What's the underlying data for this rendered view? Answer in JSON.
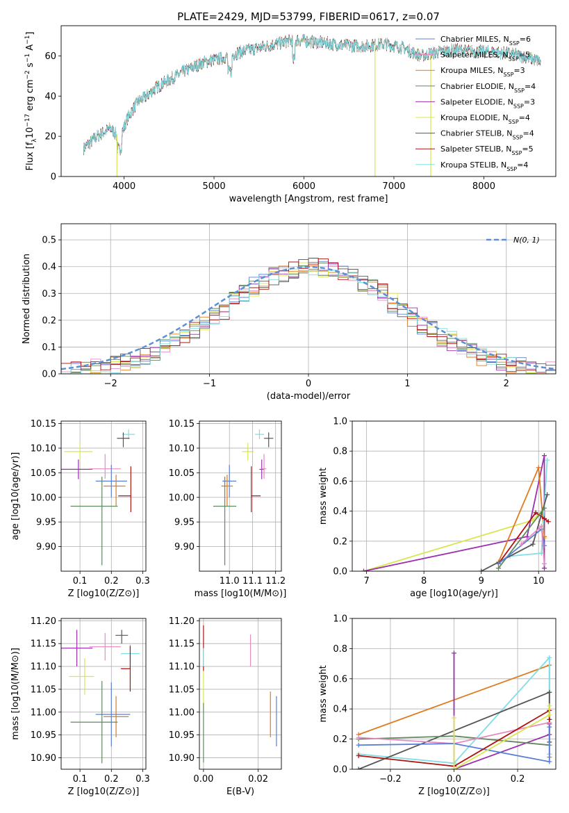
{
  "title": "PLATE=2429, MJD=53799, FIBERID=0617, z=0.07",
  "colors": {
    "Chabrier MILES": "#5b7fd6",
    "Salpeter MILES": "#e68ac4",
    "Kroupa MILES": "#e07a1f",
    "Chabrier ELODIE": "#5e8a5e",
    "Salpeter ELODIE": "#9b2fae",
    "Kroupa ELODIE": "#d9e64e",
    "Chabrier STELIB": "#555555",
    "Salpeter STELIB": "#b0100f",
    "Kroupa STELIB": "#7fdde3",
    "normal": "#5b8fd6"
  },
  "chart_data": [
    {
      "id": "spectrum",
      "type": "line",
      "xlabel": "wavelength [Angstrom, rest frame]",
      "ylabel": "Flux [f_λ 10^-17 erg cm^-2 s^-1 A^-1]",
      "ylabel_parts": {
        "a": "Flux [f",
        "b": "λ",
        "c": "10",
        "d": "−17",
        "e": " erg cm",
        "f": "−2",
        "g": " s",
        "h": "−1",
        "i": " A",
        "j": "−1",
        "k": "]"
      },
      "xlim": [
        3300,
        8800
      ],
      "ylim": [
        0,
        75
      ],
      "xticks": [
        4000,
        5000,
        6000,
        7000,
        8000
      ],
      "yticks": [
        0,
        20,
        40,
        60
      ],
      "grid": false,
      "legend": "upper right",
      "continuum": {
        "x": [
          3550,
          3700,
          3850,
          3950,
          4050,
          4150,
          4250,
          4350,
          4500,
          4700,
          4900,
          5100,
          5300,
          5500,
          5700,
          5900,
          6100,
          6300,
          6500,
          6700,
          6900,
          7100,
          7300,
          7500,
          7700,
          7900,
          8100,
          8300,
          8500,
          8630
        ],
        "y": [
          14,
          20,
          24,
          19,
          30,
          37,
          40,
          44,
          48,
          53,
          57,
          59,
          62,
          64,
          66,
          68,
          67,
          66,
          65,
          65,
          66,
          64,
          60,
          62,
          63,
          62,
          62,
          61,
          59,
          57
        ]
      },
      "spikes": [
        {
          "x": 3920,
          "y": 0
        },
        {
          "x": 6790,
          "y": 0
        },
        {
          "x": 7410,
          "y": 0
        }
      ],
      "legend_entries": [
        {
          "name": "Chabrier MILES",
          "n": "6"
        },
        {
          "name": "Salpeter MILES",
          "n": "5"
        },
        {
          "name": "Kroupa MILES",
          "n": "3"
        },
        {
          "name": "Chabrier ELODIE",
          "n": "4"
        },
        {
          "name": "Salpeter ELODIE",
          "n": "3"
        },
        {
          "name": "Kroupa ELODIE",
          "n": "4"
        },
        {
          "name": "Chabrier STELIB",
          "n": "4"
        },
        {
          "name": "Salpeter STELIB",
          "n": "5"
        },
        {
          "name": "Kroupa STELIB",
          "n": "4"
        }
      ],
      "legend_sub": "SSP"
    },
    {
      "id": "residuals",
      "type": "bar",
      "xlabel": "(data-model)/error",
      "ylabel": "Normed distribution",
      "xlim": [
        -2.5,
        2.5
      ],
      "ylim": [
        0,
        0.56
      ],
      "xticks": [
        -2,
        -1,
        0,
        1,
        2
      ],
      "yticks": [
        0.0,
        0.1,
        0.2,
        0.3,
        0.4,
        0.5
      ],
      "grid": true,
      "legend": "upper right",
      "normal_label": "N(0, 1)",
      "bin_width": 0.1
    },
    {
      "id": "age_vs_Z",
      "type": "scatter",
      "xlabel": "Z [log10(Z/Z⊙)]",
      "ylabel": "age [log10(age/yr)]",
      "xlim": [
        0.04,
        0.31
      ],
      "ylim": [
        9.85,
        10.155
      ],
      "xticks": [
        0.1,
        0.2,
        0.3
      ],
      "yticks": [
        9.9,
        9.95,
        10.0,
        10.05,
        10.1,
        10.15
      ],
      "grid": true,
      "points": [
        {
          "model": "Kroupa STELIB",
          "x": 0.255,
          "y": 10.128,
          "ex": [
            0.02,
            0.02
          ],
          "ey": [
            0.01,
            0.01
          ]
        },
        {
          "model": "Chabrier STELIB",
          "x": 0.238,
          "y": 10.12,
          "ex": [
            0.02,
            0.02
          ],
          "ey": [
            0.018,
            0.012
          ]
        },
        {
          "model": "Kroupa ELODIE",
          "x": 0.1,
          "y": 10.093,
          "ex": [
            0.05,
            0.04
          ],
          "ey": [
            0.018,
            0.018
          ]
        },
        {
          "model": "Salpeter ELODIE",
          "x": 0.095,
          "y": 10.057,
          "ex": [
            0.06,
            0.045
          ],
          "ey": [
            0.02,
            0.02
          ]
        },
        {
          "model": "Salpeter MILES",
          "x": 0.18,
          "y": 10.058,
          "ex": [
            0.05,
            0.05
          ],
          "ey": [
            0.02,
            0.03
          ]
        },
        {
          "model": "Salpeter STELIB",
          "x": 0.262,
          "y": 10.003,
          "ex": [
            0.04,
            0.0
          ],
          "ey": [
            0.033,
            0.06
          ]
        },
        {
          "model": "Chabrier MILES",
          "x": 0.2,
          "y": 10.033,
          "ex": [
            0.05,
            0.05
          ],
          "ey": [
            0.033,
            0.033
          ]
        },
        {
          "model": "Kroupa MILES",
          "x": 0.215,
          "y": 10.023,
          "ex": [
            0.04,
            0.03
          ],
          "ey": [
            0.04,
            0.023
          ]
        },
        {
          "model": "Chabrier ELODIE",
          "x": 0.17,
          "y": 9.982,
          "ex": [
            0.1,
            0.05
          ],
          "ey": [
            0.12,
            0.06
          ]
        }
      ]
    },
    {
      "id": "age_vs_mass",
      "type": "scatter",
      "xlabel": "mass [log10(M/M⊙)]",
      "ylabel": "",
      "xlim": [
        10.87,
        11.225
      ],
      "ylim": [
        9.85,
        10.155
      ],
      "xticks": [
        11.0,
        11.1,
        11.2
      ],
      "yticks": [
        9.9,
        9.95,
        10.0,
        10.05,
        10.1,
        10.15
      ],
      "grid": true,
      "points": [
        {
          "model": "Kroupa STELIB",
          "x": 11.13,
          "y": 10.128,
          "ex": [
            0.02,
            0.02
          ],
          "ey": [
            0.01,
            0.01
          ]
        },
        {
          "model": "Chabrier STELIB",
          "x": 11.17,
          "y": 10.12,
          "ex": [
            0.02,
            0.02
          ],
          "ey": [
            0.018,
            0.012
          ]
        },
        {
          "model": "Kroupa ELODIE",
          "x": 11.08,
          "y": 10.093,
          "ex": [
            0.025,
            0.025
          ],
          "ey": [
            0.018,
            0.018
          ]
        },
        {
          "model": "Salpeter ELODIE",
          "x": 11.14,
          "y": 10.057,
          "ex": [
            0.01,
            0.01
          ],
          "ey": [
            0.02,
            0.02
          ]
        },
        {
          "model": "Salpeter MILES",
          "x": 11.15,
          "y": 10.058,
          "ex": [
            0.01,
            0.01
          ],
          "ey": [
            0.02,
            0.03
          ]
        },
        {
          "model": "Salpeter STELIB",
          "x": 11.095,
          "y": 10.003,
          "ex": [
            0.0,
            0.04
          ],
          "ey": [
            0.033,
            0.06
          ]
        },
        {
          "model": "Chabrier MILES",
          "x": 11.0,
          "y": 10.033,
          "ex": [
            0.03,
            0.03
          ],
          "ey": [
            0.033,
            0.033
          ]
        },
        {
          "model": "Kroupa MILES",
          "x": 10.99,
          "y": 10.023,
          "ex": [
            0.025,
            0.025
          ],
          "ey": [
            0.04,
            0.023
          ]
        },
        {
          "model": "Chabrier ELODIE",
          "x": 10.98,
          "y": 9.982,
          "ex": [
            0.05,
            0.05
          ],
          "ey": [
            0.12,
            0.06
          ]
        }
      ]
    },
    {
      "id": "weight_vs_age",
      "type": "line",
      "xlabel": "age [log10(age/yr)]",
      "ylabel": "mass weight",
      "xlim": [
        6.75,
        10.3
      ],
      "ylim": [
        0.0,
        1.0
      ],
      "xticks": [
        7,
        8,
        9,
        10
      ],
      "yticks": [
        0.0,
        0.2,
        0.4,
        0.6,
        0.8,
        1.0
      ],
      "grid": true,
      "series": [
        {
          "model": "Kroupa ELODIE",
          "x": [
            6.95,
            9.9,
            10.1,
            10.1
          ],
          "y": [
            0.0,
            0.34,
            0.42,
            0.22
          ]
        },
        {
          "model": "Salpeter ELODIE",
          "x": [
            6.95,
            9.8,
            10.1,
            10.1
          ],
          "y": [
            0.0,
            0.23,
            0.77,
            0.02
          ]
        },
        {
          "model": "Kroupa MILES",
          "x": [
            9.3,
            10.0,
            10.1
          ],
          "y": [
            0.06,
            0.69,
            0.23
          ]
        },
        {
          "model": "Kroupa STELIB",
          "x": [
            9.5,
            10.05,
            10.15
          ],
          "y": [
            0.1,
            0.12,
            0.74
          ]
        },
        {
          "model": "Salpeter STELIB",
          "x": [
            9.3,
            9.95,
            10.1,
            10.17
          ],
          "y": [
            0.05,
            0.39,
            0.35,
            0.33
          ]
        },
        {
          "model": "Chabrier STELIB",
          "x": [
            9.0,
            9.9,
            10.15
          ],
          "y": [
            0.0,
            0.18,
            0.51
          ]
        },
        {
          "model": "Chabrier ELODIE",
          "x": [
            9.3,
            10.1
          ],
          "y": [
            0.02,
            0.42
          ]
        },
        {
          "model": "Chabrier MILES",
          "x": [
            9.3,
            10.05,
            10.1
          ],
          "y": [
            0.05,
            0.28,
            0.17
          ]
        },
        {
          "model": "Salpeter MILES",
          "x": [
            9.7,
            10.05,
            10.1
          ],
          "y": [
            0.18,
            0.3,
            0.05
          ]
        }
      ]
    },
    {
      "id": "mass_vs_Z",
      "type": "scatter",
      "xlabel": "Z [log10(Z/Z⊙)]",
      "ylabel": "mass [log10(M/M⊙)]",
      "xlim": [
        0.04,
        0.31
      ],
      "ylim": [
        10.875,
        11.205
      ],
      "xticks": [
        0.1,
        0.2,
        0.3
      ],
      "yticks": [
        10.9,
        10.95,
        11.0,
        11.05,
        11.1,
        11.15,
        11.2
      ],
      "grid": true,
      "points": [
        {
          "model": "Chabrier STELIB",
          "x": 0.233,
          "y": 11.168,
          "ex": [
            0.02,
            0.02
          ],
          "ey": [
            0.018,
            0.012
          ]
        },
        {
          "model": "Kroupa STELIB",
          "x": 0.26,
          "y": 11.128,
          "ex": [
            0.03,
            0.03
          ],
          "ey": [
            0.02,
            0.02
          ]
        },
        {
          "model": "Salpeter ELODIE",
          "x": 0.09,
          "y": 11.14,
          "ex": [
            0.05,
            0.05
          ],
          "ey": [
            0.04,
            0.04
          ]
        },
        {
          "model": "Salpeter MILES",
          "x": 0.18,
          "y": 11.143,
          "ex": [
            0.05,
            0.05
          ],
          "ey": [
            0.03,
            0.03
          ]
        },
        {
          "model": "Salpeter STELIB",
          "x": 0.26,
          "y": 11.095,
          "ex": [
            0.03,
            0.0
          ],
          "ey": [
            0.05,
            0.05
          ]
        },
        {
          "model": "Kroupa ELODIE",
          "x": 0.115,
          "y": 11.078,
          "ex": [
            0.05,
            0.03
          ],
          "ey": [
            0.04,
            0.04
          ]
        },
        {
          "model": "Chabrier MILES",
          "x": 0.2,
          "y": 10.995,
          "ex": [
            0.05,
            0.06
          ],
          "ey": [
            0.07,
            0.07
          ]
        },
        {
          "model": "Kroupa MILES",
          "x": 0.215,
          "y": 10.99,
          "ex": [
            0.04,
            0.04
          ],
          "ey": [
            0.045,
            0.045
          ]
        },
        {
          "model": "Chabrier ELODIE",
          "x": 0.17,
          "y": 10.978,
          "ex": [
            0.1,
            0.05
          ],
          "ey": [
            0.09,
            0.09
          ]
        }
      ]
    },
    {
      "id": "mass_vs_EBV",
      "type": "scatter",
      "xlabel": "E(B-V)",
      "ylabel": "",
      "xlim": [
        -0.0015,
        0.0285
      ],
      "ylim": [
        10.875,
        11.205
      ],
      "xticks": [
        0.0,
        0.02
      ],
      "yticks": [
        10.9,
        10.95,
        11.0,
        11.05,
        11.1,
        11.15,
        11.2
      ],
      "grid": true,
      "points": [
        {
          "model": "Salpeter STELIB",
          "x": 0.0,
          "y": 11.15,
          "ey": [
            0.06,
            0.04
          ]
        },
        {
          "model": "Kroupa ELODIE",
          "x": 0.0,
          "y": 11.05,
          "ey": [
            0.04,
            0.04
          ]
        },
        {
          "model": "Chabrier ELODIE",
          "x": 0.0,
          "y": 10.96,
          "ey": [
            0.07,
            0.06
          ]
        },
        {
          "model": "Kroupa STELIB",
          "x": 0.0,
          "y": 11.12,
          "ey": [
            0.02,
            0.02
          ]
        },
        {
          "model": "Salpeter MILES",
          "x": 0.0172,
          "y": 11.13,
          "ey": [
            0.03,
            0.04
          ]
        },
        {
          "model": "Kroupa MILES",
          "x": 0.0245,
          "y": 10.995,
          "ey": [
            0.05,
            0.05
          ]
        },
        {
          "model": "Chabrier MILES",
          "x": 0.0267,
          "y": 10.98,
          "ey": [
            0.055,
            0.055
          ]
        }
      ]
    },
    {
      "id": "weight_vs_Z",
      "type": "line",
      "xlabel": "Z [log10(Z/Z⊙)]",
      "ylabel": "mass weight",
      "xlim": [
        -0.32,
        0.32
      ],
      "ylim": [
        0.0,
        1.0
      ],
      "xticks": [
        -0.2,
        0.0,
        0.2
      ],
      "yticks": [
        0.0,
        0.2,
        0.4,
        0.6,
        0.8,
        1.0
      ],
      "grid": true,
      "series": [
        {
          "model": "Kroupa MILES",
          "x": [
            -0.3,
            0.3,
            0.3
          ],
          "y": [
            0.23,
            0.69,
            0.08
          ]
        },
        {
          "model": "Kroupa STELIB",
          "x": [
            -0.3,
            0.0,
            0.3,
            0.3
          ],
          "y": [
            0.1,
            0.04,
            0.74,
            0.1
          ]
        },
        {
          "model": "Chabrier STELIB",
          "x": [
            -0.3,
            0.3,
            0.3
          ],
          "y": [
            0.0,
            0.51,
            0.18
          ]
        },
        {
          "model": "Salpeter ELODIE",
          "x": [
            0.0,
            0.0,
            0.3,
            0.3
          ],
          "y": [
            0.77,
            0.0,
            0.23,
            0.3
          ]
        },
        {
          "model": "Chabrier ELODIE",
          "x": [
            -0.3,
            0.0,
            0.3
          ],
          "y": [
            0.2,
            0.22,
            0.16
          ]
        },
        {
          "model": "Salpeter MILES",
          "x": [
            -0.3,
            0.0,
            0.3
          ],
          "y": [
            0.21,
            0.17,
            0.31
          ]
        },
        {
          "model": "Chabrier MILES",
          "x": [
            -0.3,
            0.0,
            0.3,
            0.3
          ],
          "y": [
            0.16,
            0.17,
            0.05,
            0.28
          ]
        },
        {
          "model": "Salpeter STELIB",
          "x": [
            -0.3,
            0.0,
            0.3,
            0.3
          ],
          "y": [
            0.09,
            0.02,
            0.39,
            0.33
          ]
        },
        {
          "model": "Kroupa ELODIE",
          "x": [
            0.0,
            0.0,
            0.3,
            0.3
          ],
          "y": [
            0.34,
            0.0,
            0.36,
            0.42
          ]
        }
      ]
    }
  ]
}
